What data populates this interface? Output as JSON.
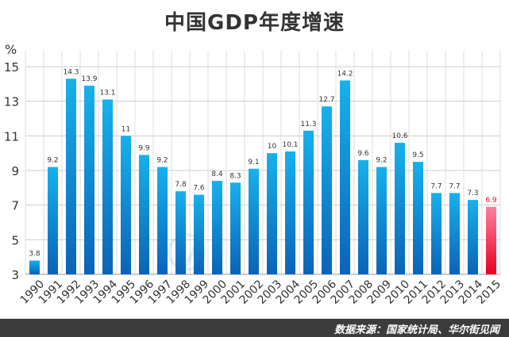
{
  "title": "中国GDP年度增速",
  "unit_label": "%",
  "source": "数据来源：国家统计局、华尔街见闻",
  "colors": {
    "bar_top": "#16b1ec",
    "bar_bottom": "#0b63b8",
    "highlight_top": "#ff7fa0",
    "highlight_bottom": "#e8001e",
    "highlight_label": "#e8001e",
    "grid": "#cccccc",
    "footer": "#3c3c3c"
  },
  "chart_data": {
    "type": "bar",
    "title": "中国GDP年度增速",
    "ylabel": "%",
    "xlabel": "",
    "ylim": [
      3,
      15
    ],
    "yticks": [
      3,
      5,
      7,
      9,
      11,
      13,
      15
    ],
    "grid": true,
    "categories": [
      "1990",
      "1991",
      "1992",
      "1993",
      "1994",
      "1995",
      "1996",
      "1997",
      "1998",
      "1999",
      "2000",
      "2001",
      "2002",
      "2003",
      "2004",
      "2005",
      "2006",
      "2007",
      "2008",
      "2009",
      "2010",
      "2011",
      "2012",
      "2013",
      "2014",
      "2015"
    ],
    "values": [
      3.8,
      9.2,
      14.3,
      13.9,
      13.1,
      11,
      9.9,
      9.2,
      7.8,
      7.6,
      8.4,
      8.3,
      9.1,
      10,
      10.1,
      11.3,
      12.7,
      14.2,
      9.6,
      9.2,
      10.6,
      9.5,
      7.7,
      7.7,
      7.3,
      6.9
    ],
    "highlight_category": "2015"
  }
}
